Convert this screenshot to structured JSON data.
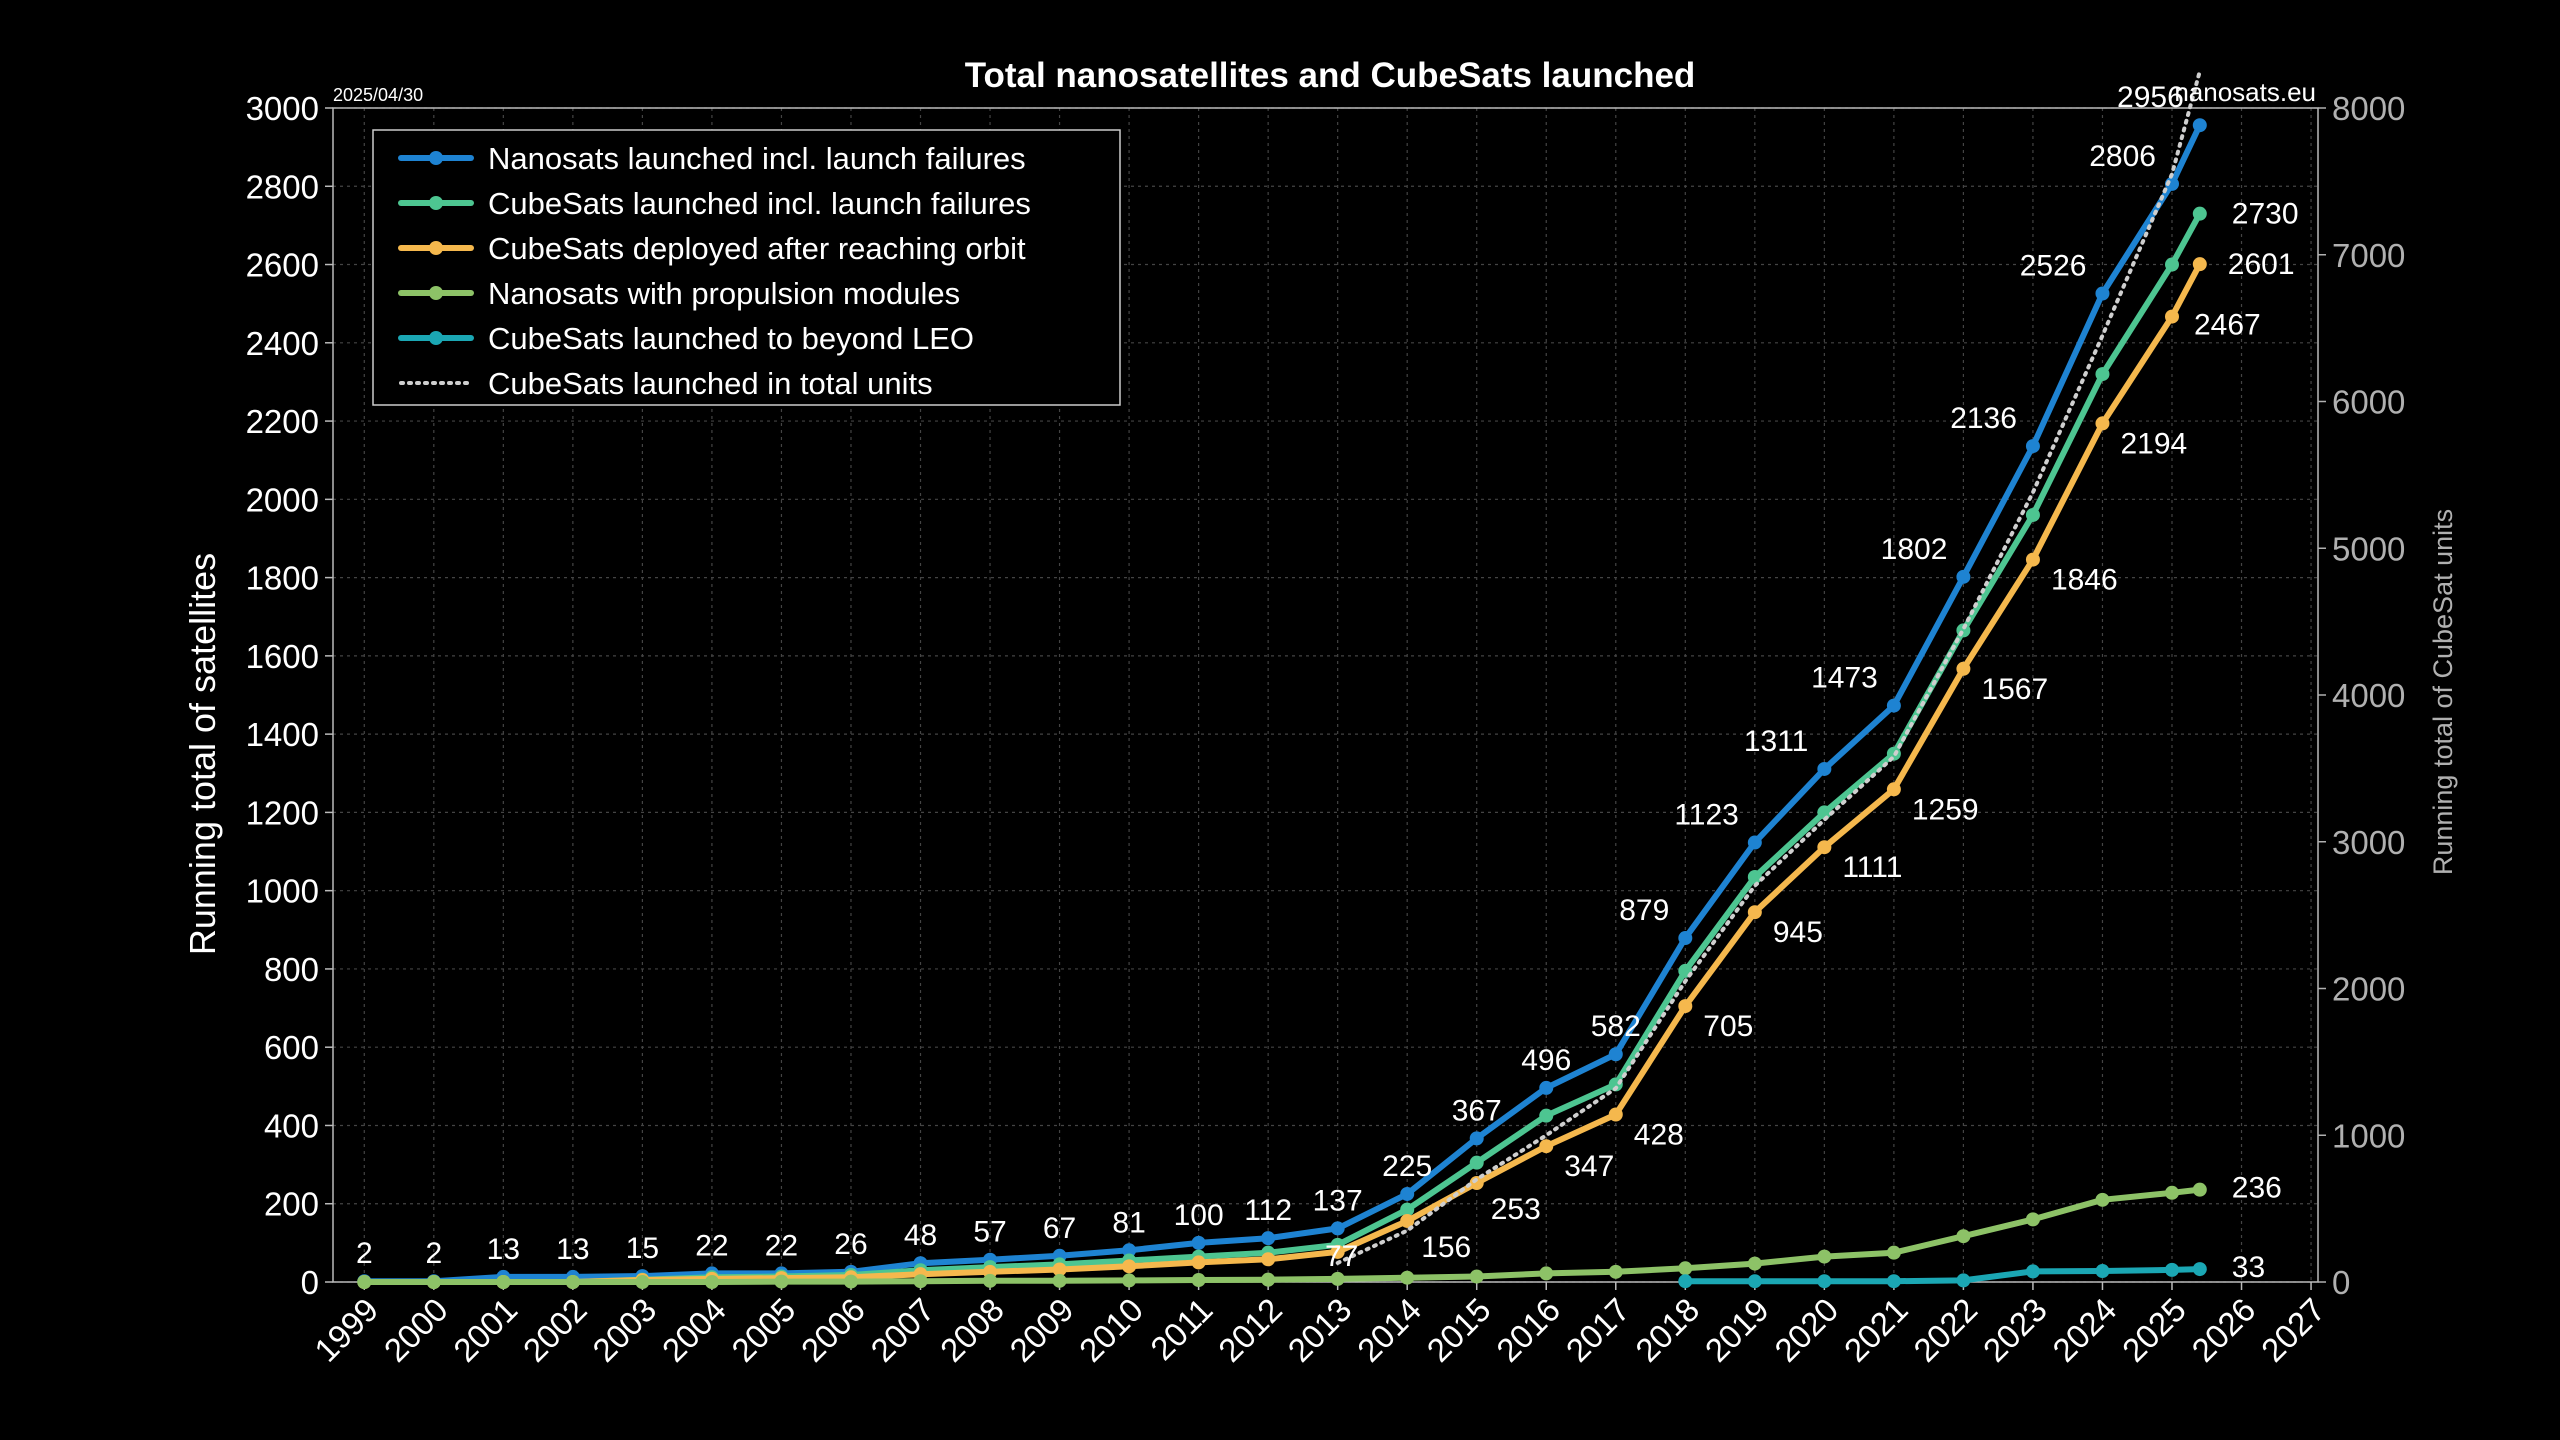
{
  "chart_data": {
    "type": "line",
    "title": "Total nanosatellites and CubeSats launched",
    "date_label": "2025/04/30",
    "source_label": "nanosats.eu",
    "ylabel": "Running total of satellites",
    "y2label": "Running total of CubeSat units",
    "ylim": [
      0,
      3000
    ],
    "y2lim": [
      0,
      8000
    ],
    "y_ticks": [
      0,
      200,
      400,
      600,
      800,
      1000,
      1200,
      1400,
      1600,
      1800,
      2000,
      2200,
      2400,
      2600,
      2800,
      3000
    ],
    "y2_ticks": [
      0,
      1000,
      2000,
      3000,
      4000,
      5000,
      6000,
      7000,
      8000
    ],
    "x_ticks": [
      "1999",
      "2000",
      "2001",
      "2002",
      "2003",
      "2004",
      "2005",
      "2006",
      "2007",
      "2008",
      "2009",
      "2010",
      "2011",
      "2012",
      "2013",
      "2014",
      "2015",
      "2016",
      "2017",
      "2018",
      "2019",
      "2020",
      "2021",
      "2022",
      "2023",
      "2024",
      "2025",
      "2026",
      "2027"
    ],
    "grid": true,
    "legend_position": "top-left",
    "colors": {
      "background": "#000000",
      "text": "#ffffff",
      "grid": "#444444",
      "axis": "#bbbbbb",
      "secondary_axis": "#b0b0b0"
    },
    "series": [
      {
        "name": "Nanosats launched incl. launch failures",
        "color": "#1e83d2",
        "style": "solid",
        "x": [
          1999,
          2000,
          2001,
          2002,
          2003,
          2004,
          2005,
          2006,
          2007,
          2008,
          2009,
          2010,
          2011,
          2012,
          2013,
          2014,
          2015,
          2016,
          2017,
          2018,
          2019,
          2020,
          2021,
          2022,
          2023,
          2024,
          2025,
          2025.4
        ],
        "values": [
          2,
          2,
          13,
          13,
          15,
          22,
          22,
          26,
          48,
          57,
          67,
          81,
          100,
          112,
          137,
          225,
          367,
          496,
          582,
          879,
          1123,
          1311,
          1473,
          1802,
          2136,
          2526,
          2806,
          2956
        ],
        "labels": [
          "2",
          "2",
          "13",
          "13",
          "15",
          "22",
          "22",
          "26",
          "48",
          "57",
          "67",
          "81",
          "100",
          "112",
          "137",
          "225",
          "367",
          "496",
          "582",
          "879",
          "1123",
          "1311",
          "1473",
          "1802",
          "2136",
          "2526",
          "2806",
          "2956"
        ]
      },
      {
        "name": "CubeSats launched incl. launch failures",
        "color": "#4dc591",
        "style": "solid",
        "x": [
          1999,
          2000,
          2001,
          2002,
          2003,
          2004,
          2005,
          2006,
          2007,
          2008,
          2009,
          2010,
          2011,
          2012,
          2013,
          2014,
          2015,
          2016,
          2017,
          2018,
          2019,
          2020,
          2021,
          2022,
          2023,
          2024,
          2025,
          2025.4
        ],
        "values": [
          0,
          0,
          0,
          0,
          6,
          12,
          14,
          18,
          30,
          38,
          45,
          55,
          65,
          75,
          95,
          185,
          305,
          425,
          505,
          795,
          1035,
          1200,
          1350,
          1665,
          1960,
          2320,
          2600,
          2730
        ],
        "labels": [
          "",
          "",
          "",
          "",
          "",
          "",
          "",
          "",
          "",
          "",
          "",
          "",
          "",
          "",
          "",
          "",
          "",
          "",
          "",
          "",
          "",
          "",
          "",
          "",
          "",
          "",
          "",
          "2730"
        ]
      },
      {
        "name": "CubeSats deployed after reaching orbit",
        "color": "#f5b84d",
        "style": "solid",
        "x": [
          1999,
          2000,
          2001,
          2002,
          2003,
          2004,
          2005,
          2006,
          2007,
          2008,
          2009,
          2010,
          2011,
          2012,
          2013,
          2014,
          2015,
          2016,
          2017,
          2018,
          2019,
          2020,
          2021,
          2022,
          2023,
          2024,
          2025,
          2025.4
        ],
        "values": [
          0,
          0,
          0,
          0,
          5,
          8,
          10,
          12,
          20,
          26,
          32,
          40,
          50,
          58,
          77,
          156,
          253,
          347,
          428,
          705,
          945,
          1111,
          1259,
          1567,
          1846,
          2194,
          2467,
          2601
        ],
        "labels": [
          "",
          "",
          "",
          "",
          "",
          "",
          "",
          "",
          "",
          "",
          "",
          "",
          "",
          "",
          "77",
          "156",
          "253",
          "347",
          "428",
          "705",
          "945",
          "1111",
          "1259",
          "1567",
          "1846",
          "2194",
          "2467",
          "2601"
        ]
      },
      {
        "name": "Nanosats with propulsion modules",
        "color": "#8dc267",
        "style": "solid",
        "x": [
          1999,
          2000,
          2001,
          2002,
          2003,
          2004,
          2005,
          2006,
          2007,
          2008,
          2009,
          2010,
          2011,
          2012,
          2013,
          2014,
          2015,
          2016,
          2017,
          2018,
          2019,
          2020,
          2021,
          2022,
          2023,
          2024,
          2025,
          2025.4
        ],
        "values": [
          0,
          0,
          0,
          0,
          0,
          0,
          1,
          1,
          2,
          3,
          3,
          4,
          5,
          6,
          8,
          11,
          14,
          22,
          26,
          35,
          47,
          65,
          75,
          117,
          160,
          210,
          228,
          236
        ],
        "labels": [
          "",
          "",
          "",
          "",
          "",
          "",
          "",
          "",
          "",
          "",
          "",
          "",
          "",
          "",
          "",
          "",
          "",
          "",
          "",
          "",
          "",
          "",
          "",
          "",
          "",
          "",
          "",
          "236"
        ]
      },
      {
        "name": "CubeSats launched to beyond LEO",
        "color": "#1ba7b4",
        "style": "solid",
        "x": [
          2018,
          2019,
          2020,
          2021,
          2022,
          2023,
          2024,
          2025,
          2025.4
        ],
        "values": [
          2,
          2,
          2,
          2,
          4,
          27,
          28,
          31,
          33
        ],
        "labels": [
          "",
          "",
          "",
          "",
          "",
          "",
          "",
          "",
          "33"
        ]
      },
      {
        "name": "CubeSats launched in total units",
        "color": "#cfcfcf",
        "style": "dotted",
        "axis": "right",
        "x": [
          2013,
          2014,
          2015,
          2016,
          2017,
          2018,
          2019,
          2020,
          2021,
          2022,
          2023,
          2024,
          2025,
          2025.4
        ],
        "values": [
          130,
          350,
          700,
          1000,
          1320,
          2050,
          2700,
          3150,
          3580,
          4450,
          5380,
          6450,
          7550,
          8250
        ],
        "labels": [
          "",
          "",
          "",
          "",
          "",
          "",
          "",
          "",
          "",
          "",
          "",
          "",
          "",
          ""
        ]
      }
    ]
  }
}
